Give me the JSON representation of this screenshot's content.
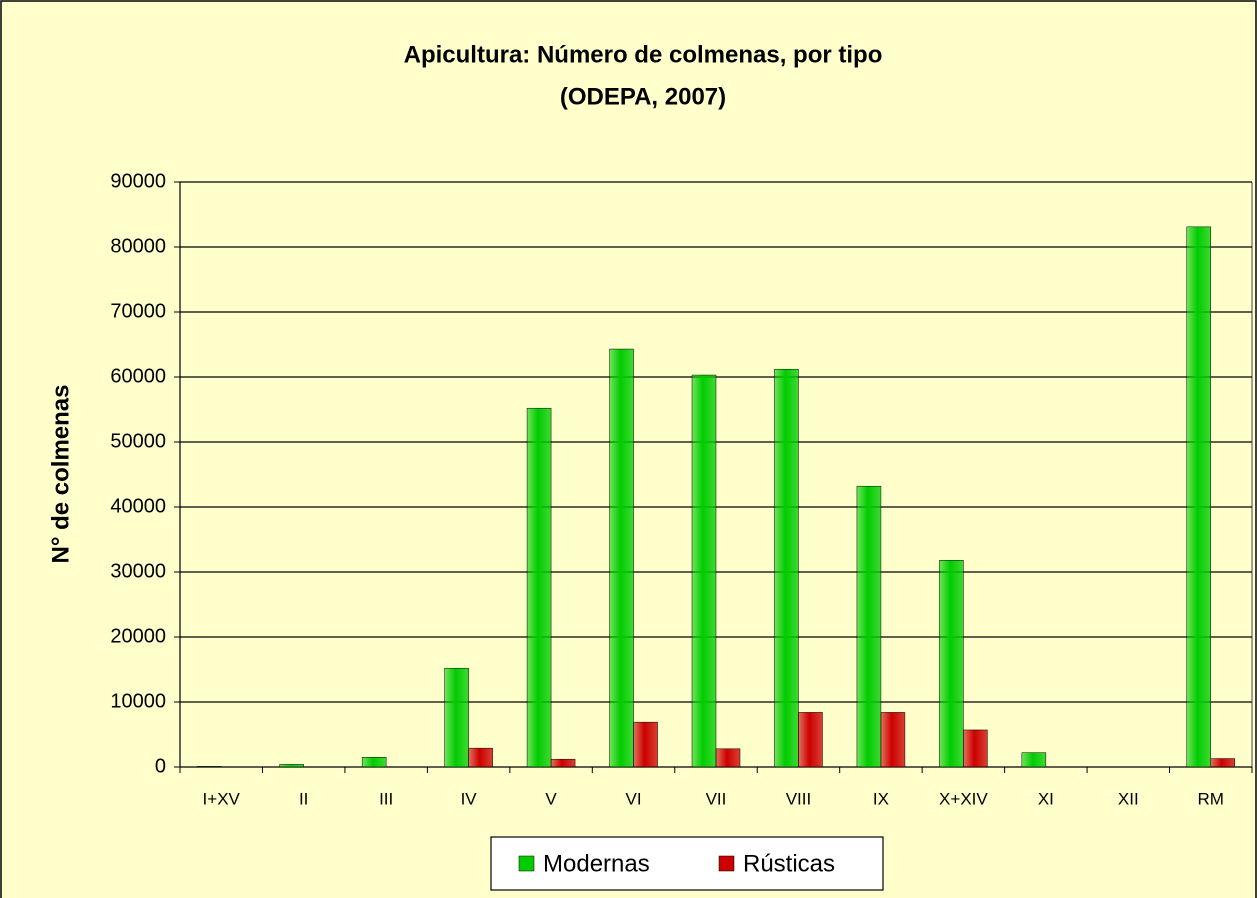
{
  "chart_data": {
    "type": "bar",
    "title": "Apicultura: Número de colmenas, por tipo",
    "subtitle": "(ODEPA, 2007)",
    "y_label": "N° de colmenas",
    "categories": [
      "I+XV",
      "II",
      "III",
      "IV",
      "V",
      "VI",
      "VII",
      "VIII",
      "IX",
      "X+XIV",
      "XI",
      "XII",
      "RM"
    ],
    "series": [
      {
        "name": "Modernas",
        "color": "#00cc00",
        "values": [
          100,
          400,
          1500,
          15200,
          55200,
          64300,
          60300,
          61200,
          43200,
          31800,
          2200,
          0,
          83100
        ]
      },
      {
        "name": "Rústicas",
        "color": "#cc0000",
        "values": [
          0,
          0,
          0,
          2900,
          1200,
          6900,
          2800,
          8400,
          8400,
          5700,
          0,
          0,
          1300
        ]
      }
    ],
    "ylim": [
      0,
      90000
    ],
    "yticks": [
      0,
      10000,
      20000,
      30000,
      40000,
      50000,
      60000,
      70000,
      80000,
      90000
    ],
    "grid": true,
    "legend": "bottom"
  }
}
